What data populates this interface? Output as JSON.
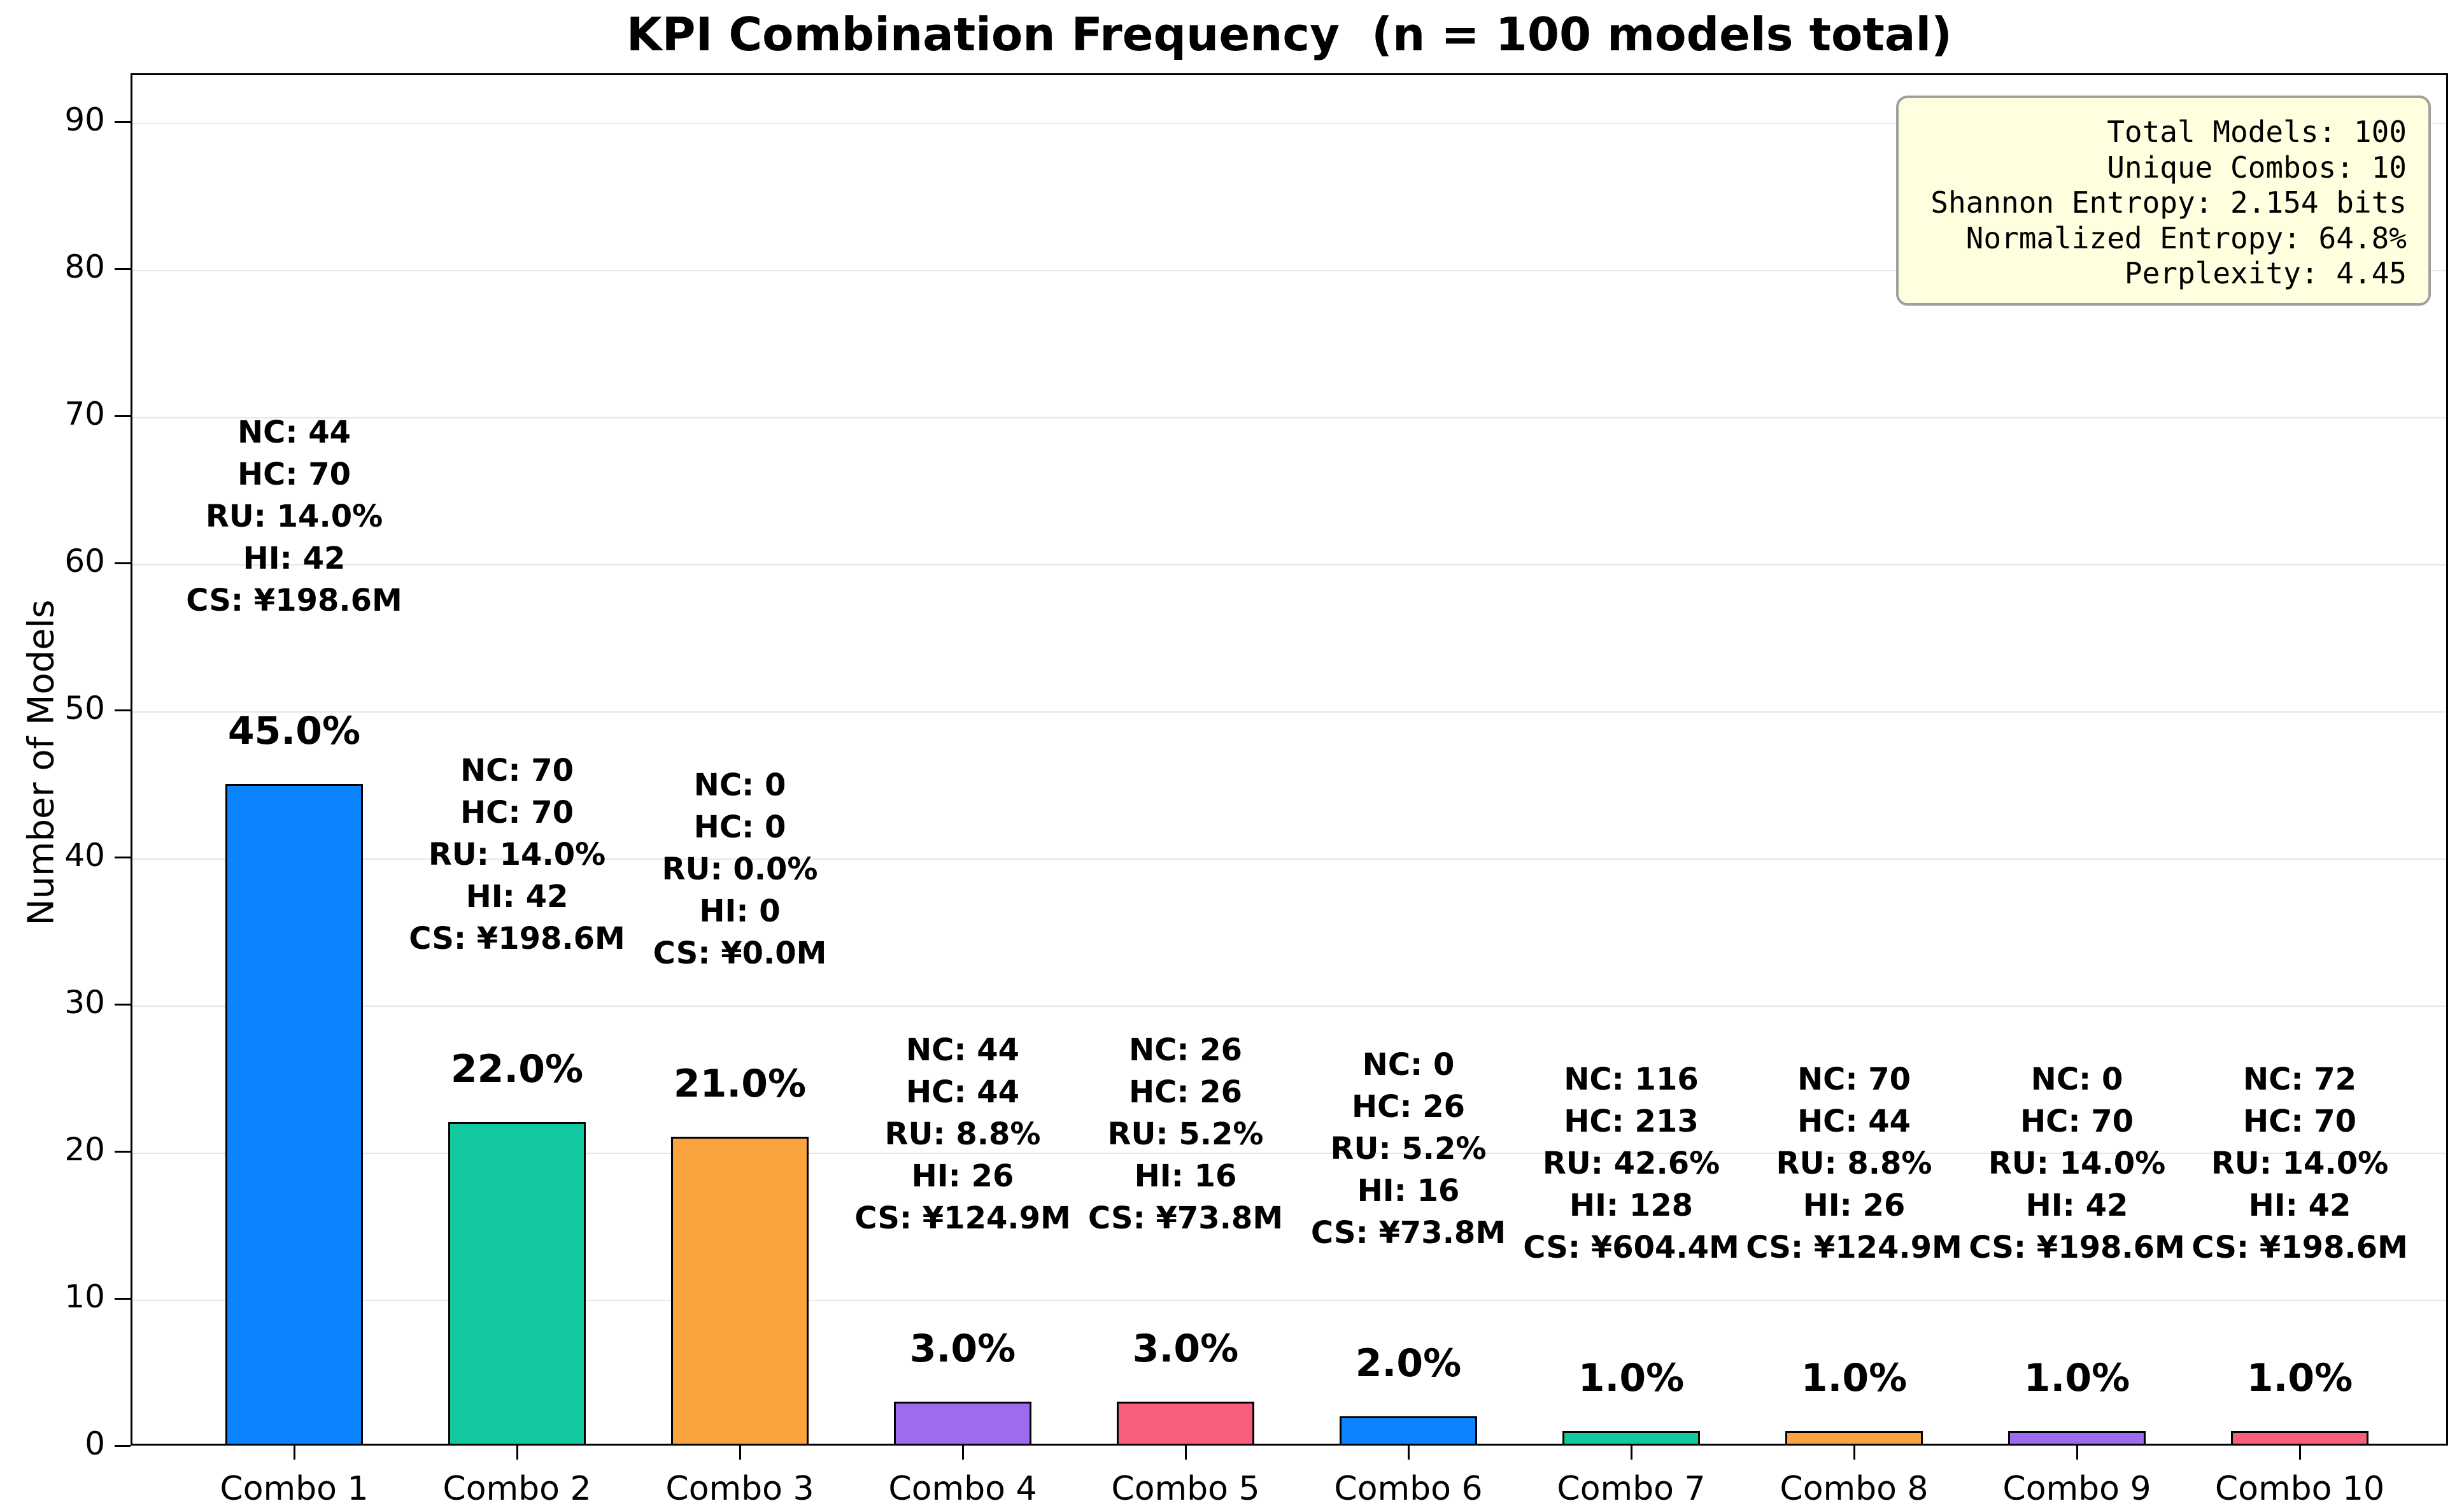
{
  "chart_data": {
    "type": "bar",
    "title": "KPI Combination Frequency  (n = 100 models total)",
    "xlabel": "",
    "ylabel": "Number of Models",
    "categories": [
      "Combo 1",
      "Combo 2",
      "Combo 3",
      "Combo 4",
      "Combo 5",
      "Combo 6",
      "Combo 7",
      "Combo 8",
      "Combo 9",
      "Combo 10"
    ],
    "values": [
      45,
      22,
      21,
      3,
      3,
      2,
      1,
      1,
      1,
      1
    ],
    "percent_labels": [
      "45.0%",
      "22.0%",
      "21.0%",
      "3.0%",
      "3.0%",
      "2.0%",
      "1.0%",
      "1.0%",
      "1.0%",
      "1.0%"
    ],
    "bar_colors": [
      "#0a85ff",
      "#12c9a0",
      "#fba43f",
      "#9d6bf0",
      "#f85f7d",
      "#0a85ff",
      "#12c9a0",
      "#fba43f",
      "#9d6bf0",
      "#f85f7d"
    ],
    "bar_edge_color": "#000000",
    "annotations": [
      [
        "NC: 44",
        "HC: 70",
        "RU: 14.0%",
        "HI: 42",
        "CS: ¥198.6M"
      ],
      [
        "NC: 70",
        "HC: 70",
        "RU: 14.0%",
        "HI: 42",
        "CS: ¥198.6M"
      ],
      [
        "NC: 0",
        "HC: 0",
        "RU: 0.0%",
        "HI: 0",
        "CS: ¥0.0M"
      ],
      [
        "NC: 44",
        "HC: 44",
        "RU: 8.8%",
        "HI: 26",
        "CS: ¥124.9M"
      ],
      [
        "NC: 26",
        "HC: 26",
        "RU: 5.2%",
        "HI: 16",
        "CS: ¥73.8M"
      ],
      [
        "NC: 0",
        "HC: 26",
        "RU: 5.2%",
        "HI: 16",
        "CS: ¥73.8M"
      ],
      [
        "NC: 116",
        "HC: 213",
        "RU: 42.6%",
        "HI: 128",
        "CS: ¥604.4M"
      ],
      [
        "NC: 70",
        "HC: 44",
        "RU: 8.8%",
        "HI: 26",
        "CS: ¥124.9M"
      ],
      [
        "NC: 0",
        "HC: 70",
        "RU: 14.0%",
        "HI: 42",
        "CS: ¥198.6M"
      ],
      [
        "NC: 72",
        "HC: 70",
        "RU: 14.0%",
        "HI: 42",
        "CS: ¥198.6M"
      ]
    ],
    "yticks": [
      0,
      10,
      20,
      30,
      40,
      50,
      60,
      70,
      80,
      90
    ],
    "ylim": [
      0,
      93.3
    ],
    "grid": true,
    "gridline_color": "#e6e6e6",
    "legend": "none"
  },
  "stats_box": {
    "lines": [
      "Total Models: 100",
      "Unique Combos: 10",
      "Shannon Entropy: 2.154 bits",
      "Normalized Entropy: 64.8%",
      "Perplexity: 4.45"
    ],
    "bg_color": "#ffffe0",
    "border_color": "#a0a0a0"
  }
}
